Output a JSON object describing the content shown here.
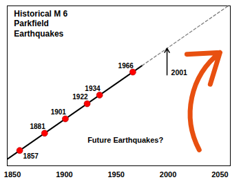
{
  "chart_data": {
    "type": "scatter",
    "title": "Historical M 6\nParkfield\nEarthquakes",
    "x": [
      1857,
      1881,
      1901,
      1922,
      1934,
      1966
    ],
    "values": [
      0.0647887323943662,
      0.1943661971830986,
      0.3023474178403756,
      0.4157276995305164,
      0.4805164319248826,
      0.6532863849765258
    ],
    "color": "#ff0000",
    "data_labels": true,
    "lines": [
      {
        "x": [
          1845,
          1975
        ],
        "values": [
          0.0,
          0.7018779342723005
        ],
        "color": "black",
        "line_style": "solid"
      },
      {
        "x": [
          1975,
          2058
        ],
        "values": [
          0.7018779342723005,
          1.15
        ],
        "color": "gray",
        "line_style": "dashed"
      }
    ],
    "annotations": [
      {
        "text": "2001",
        "x": 1999,
        "y": 0.6314553990610329,
        "y_end": 0.8314553990610329
      },
      {
        "text": "Future Earthquakes?"
      },
      {
        "x": 2030,
        "y": 0.07,
        "x_end": 2050,
        "y_end": 0.8,
        "color": "#e85010"
      }
    ],
    "xlim": [
      1845,
      2060
    ],
    "ylim": [
      -0.05,
      1.15
    ],
    "xticks": [
      1850,
      1900,
      1950,
      2000,
      2050
    ],
    "yticks": [],
    "tick_labels": "x"
  }
}
